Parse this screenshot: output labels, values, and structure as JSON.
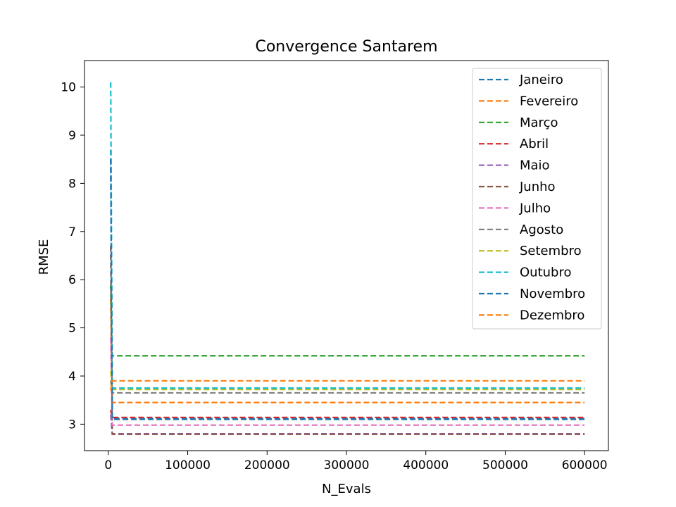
{
  "chart_data": {
    "type": "line",
    "title": "Convergence Santarem",
    "xlabel": "N_Evals",
    "ylabel": "RMSE",
    "xlim": [
      -30000,
      630000
    ],
    "ylim": [
      2.45,
      10.55
    ],
    "xticks": [
      0,
      100000,
      200000,
      300000,
      400000,
      500000,
      600000
    ],
    "xtick_labels": [
      "0",
      "100000",
      "200000",
      "300000",
      "400000",
      "500000",
      "600000"
    ],
    "yticks": [
      3,
      4,
      5,
      6,
      7,
      8,
      9,
      10
    ],
    "ytick_labels": [
      "3",
      "4",
      "5",
      "6",
      "7",
      "8",
      "9",
      "10"
    ],
    "grid": false,
    "legend_position": "upper-right",
    "line_style": "dashed",
    "series": [
      {
        "name": "Janeiro",
        "color": "#1f77b4",
        "points": [
          [
            3000,
            8.7
          ],
          [
            5000,
            3.12
          ],
          [
            600000,
            3.12
          ]
        ]
      },
      {
        "name": "Fevereiro",
        "color": "#ff7f0e",
        "points": [
          [
            3000,
            5.6
          ],
          [
            5000,
            3.45
          ],
          [
            600000,
            3.45
          ]
        ]
      },
      {
        "name": "Março",
        "color": "#2ca02c",
        "points": [
          [
            3000,
            5.9
          ],
          [
            5000,
            4.42
          ],
          [
            600000,
            4.42
          ]
        ]
      },
      {
        "name": "Abril",
        "color": "#d62728",
        "points": [
          [
            3000,
            3.3
          ],
          [
            5000,
            3.14
          ],
          [
            600000,
            3.14
          ]
        ]
      },
      {
        "name": "Maio",
        "color": "#9467bd",
        "points": [
          [
            3000,
            3.2
          ],
          [
            5000,
            2.8
          ],
          [
            600000,
            2.8
          ]
        ]
      },
      {
        "name": "Junho",
        "color": "#8c564b",
        "points": [
          [
            3000,
            6.7
          ],
          [
            5000,
            2.79
          ],
          [
            600000,
            2.79
          ]
        ]
      },
      {
        "name": "Julho",
        "color": "#e377c2",
        "points": [
          [
            3000,
            4.8
          ],
          [
            5000,
            2.98
          ],
          [
            600000,
            2.98
          ]
        ]
      },
      {
        "name": "Agosto",
        "color": "#7f7f7f",
        "points": [
          [
            3000,
            3.9
          ],
          [
            5000,
            3.65
          ],
          [
            600000,
            3.65
          ]
        ]
      },
      {
        "name": "Setembro",
        "color": "#bcbd22",
        "points": [
          [
            3000,
            4.1
          ],
          [
            5000,
            3.72
          ],
          [
            600000,
            3.72
          ]
        ]
      },
      {
        "name": "Outubro",
        "color": "#17becf",
        "points": [
          [
            3000,
            10.1
          ],
          [
            5000,
            3.75
          ],
          [
            600000,
            3.75
          ]
        ]
      },
      {
        "name": "Novembro",
        "color": "#1f77b4",
        "points": [
          [
            3000,
            8.5
          ],
          [
            5000,
            3.1
          ],
          [
            600000,
            3.1
          ]
        ]
      },
      {
        "name": "Dezembro",
        "color": "#ff7f0e",
        "points": [
          [
            3000,
            3.7
          ],
          [
            5000,
            3.9
          ],
          [
            600000,
            3.9
          ]
        ]
      }
    ]
  }
}
